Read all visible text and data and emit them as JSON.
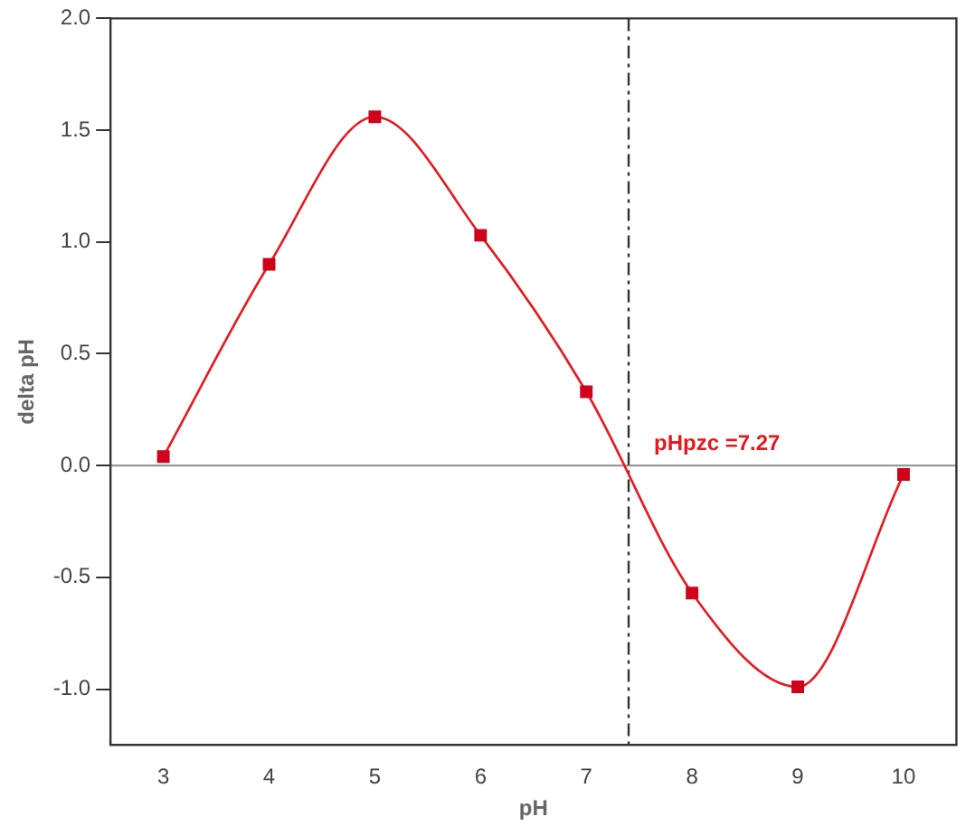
{
  "chart_data": {
    "type": "line",
    "xlabel": "pH",
    "ylabel": "delta pH",
    "x": [
      3,
      4,
      5,
      6,
      7,
      8,
      9,
      10
    ],
    "series": [
      {
        "type": "line",
        "color": "#e8191e",
        "values": [
          0.04,
          0.9,
          1.56,
          1.03,
          0.33,
          -0.57,
          -0.99,
          -0.04
        ]
      }
    ],
    "marker": "square",
    "line_style": "solid",
    "grid": false,
    "legend": false,
    "xlim": [
      2.5,
      10.5
    ],
    "xticks": [
      3,
      4,
      5,
      6,
      7,
      8,
      9,
      10
    ],
    "ylim": [
      -1.25,
      2.0
    ],
    "yticks": [
      {
        "value": -1,
        "label": "-1.0"
      },
      {
        "value": -0.5,
        "label": "-0.5"
      },
      {
        "value": 0,
        "label": "0.0"
      },
      {
        "value": 0.5,
        "label": "0.5"
      },
      {
        "value": 1,
        "label": "1.0"
      },
      {
        "value": 1.5,
        "label": "1.5"
      },
      {
        "value": 2,
        "label": "2.0"
      }
    ],
    "ref_lines": [
      {
        "axis": "y",
        "value": 0,
        "color": "#999999",
        "line_style": "solid"
      },
      {
        "axis": "x",
        "value": 7.4,
        "color": "#333333",
        "line_style": "dashed"
      }
    ],
    "annotations": [
      "pHpzc =7.27"
    ]
  }
}
